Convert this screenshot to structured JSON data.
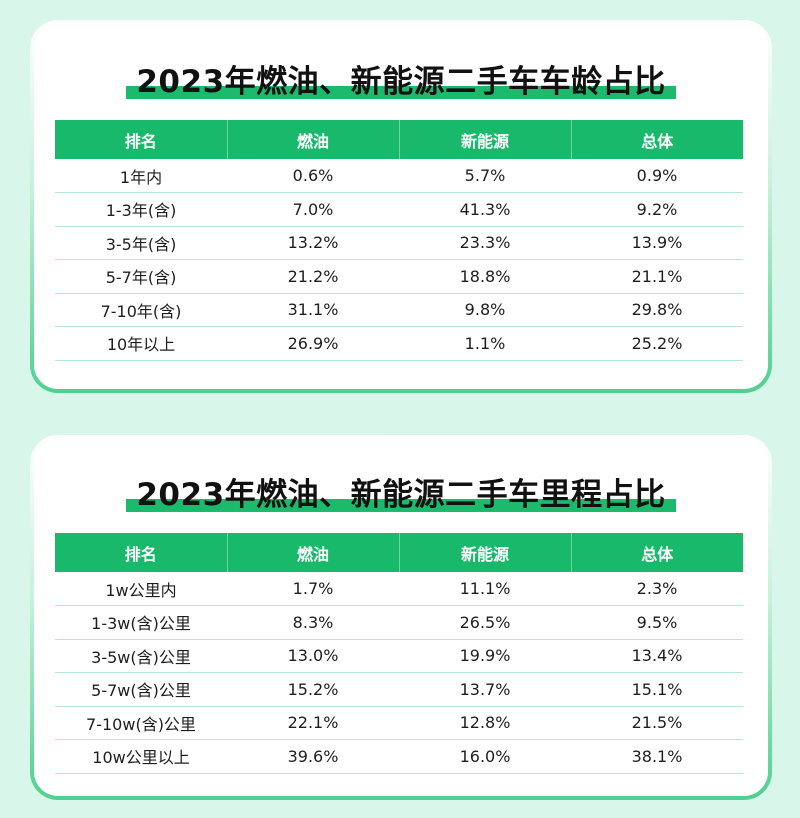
{
  "colors": {
    "background": "#d9f6ea",
    "accent_green": "#19b96b",
    "card_border": "#4fd08f",
    "row_divider": "#b7e6d6"
  },
  "age_table": {
    "title": "2023年燃油、新能源二手车车龄占比",
    "headers": [
      "排名",
      "燃油",
      "新能源",
      "总体"
    ],
    "rows": [
      [
        "1年内",
        "0.6%",
        "5.7%",
        "0.9%"
      ],
      [
        "1-3年(含)",
        "7.0%",
        "41.3%",
        "9.2%"
      ],
      [
        "3-5年(含)",
        "13.2%",
        "23.3%",
        "13.9%"
      ],
      [
        "5-7年(含)",
        "21.2%",
        "18.8%",
        "21.1%"
      ],
      [
        "7-10年(含)",
        "31.1%",
        "9.8%",
        "29.8%"
      ],
      [
        "10年以上",
        "26.9%",
        "1.1%",
        "25.2%"
      ]
    ]
  },
  "mileage_table": {
    "title": "2023年燃油、新能源二手车里程占比",
    "headers": [
      "排名",
      "燃油",
      "新能源",
      "总体"
    ],
    "rows": [
      [
        "1w公里内",
        "1.7%",
        "11.1%",
        "2.3%"
      ],
      [
        "1-3w(含)公里",
        "8.3%",
        "26.5%",
        "9.5%"
      ],
      [
        "3-5w(含)公里",
        "13.0%",
        "19.9%",
        "13.4%"
      ],
      [
        "5-7w(含)公里",
        "15.2%",
        "13.7%",
        "15.1%"
      ],
      [
        "7-10w(含)公里",
        "22.1%",
        "12.8%",
        "21.5%"
      ],
      [
        "10w公里以上",
        "39.6%",
        "16.0%",
        "38.1%"
      ]
    ]
  }
}
